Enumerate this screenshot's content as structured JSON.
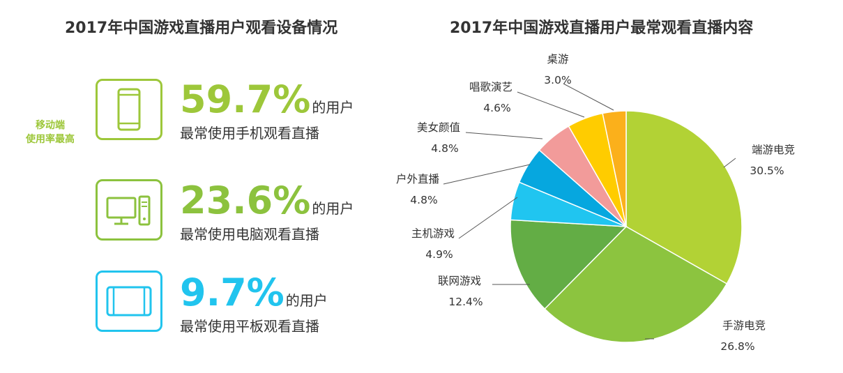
{
  "left_title": "2017年中国游戏直播用户观看设备情况",
  "right_title": "2017年中国游戏直播用户最常观看直播内容",
  "mobile_note": [
    "移动端",
    "使用率最高"
  ],
  "devices": [
    {
      "device": "phone",
      "icon": "smartphone-icon",
      "percent": "59.7%",
      "suffix": "的用户",
      "desc": "最常使用手机观看直播",
      "color": "#9dc73a"
    },
    {
      "device": "pc",
      "icon": "desktop-computer-icon",
      "percent": "23.6%",
      "suffix": "的用户",
      "desc": "最常使用电脑观看直播",
      "color": "#8cc23e"
    },
    {
      "device": "tablet",
      "icon": "tablet-icon",
      "percent": "9.7%",
      "suffix": "的用户",
      "desc": "最常使用平板观看直播",
      "color": "#21c4ee"
    }
  ],
  "chart_data": {
    "type": "pie",
    "title": "2017年中国游戏直播用户最常观看直播内容",
    "categories": [
      "端游电竞",
      "手游电竞",
      "联网游戏",
      "主机游戏",
      "户外直播",
      "美女颜值",
      "唱歌演艺",
      "桌游"
    ],
    "values": [
      30.5,
      26.8,
      12.4,
      4.9,
      4.8,
      4.8,
      4.6,
      3.0
    ],
    "labels": [
      "30.5%",
      "26.8%",
      "12.4%",
      "4.9%",
      "4.8%",
      "4.8%",
      "4.6%",
      "3.0%"
    ],
    "colors": [
      "#b2d235",
      "#8cc43f",
      "#63ad45",
      "#20c5f0",
      "#06a7df",
      "#f29b9a",
      "#ffcc00",
      "#fbb01b"
    ],
    "start_angle_deg": 0,
    "direction": "clockwise"
  }
}
